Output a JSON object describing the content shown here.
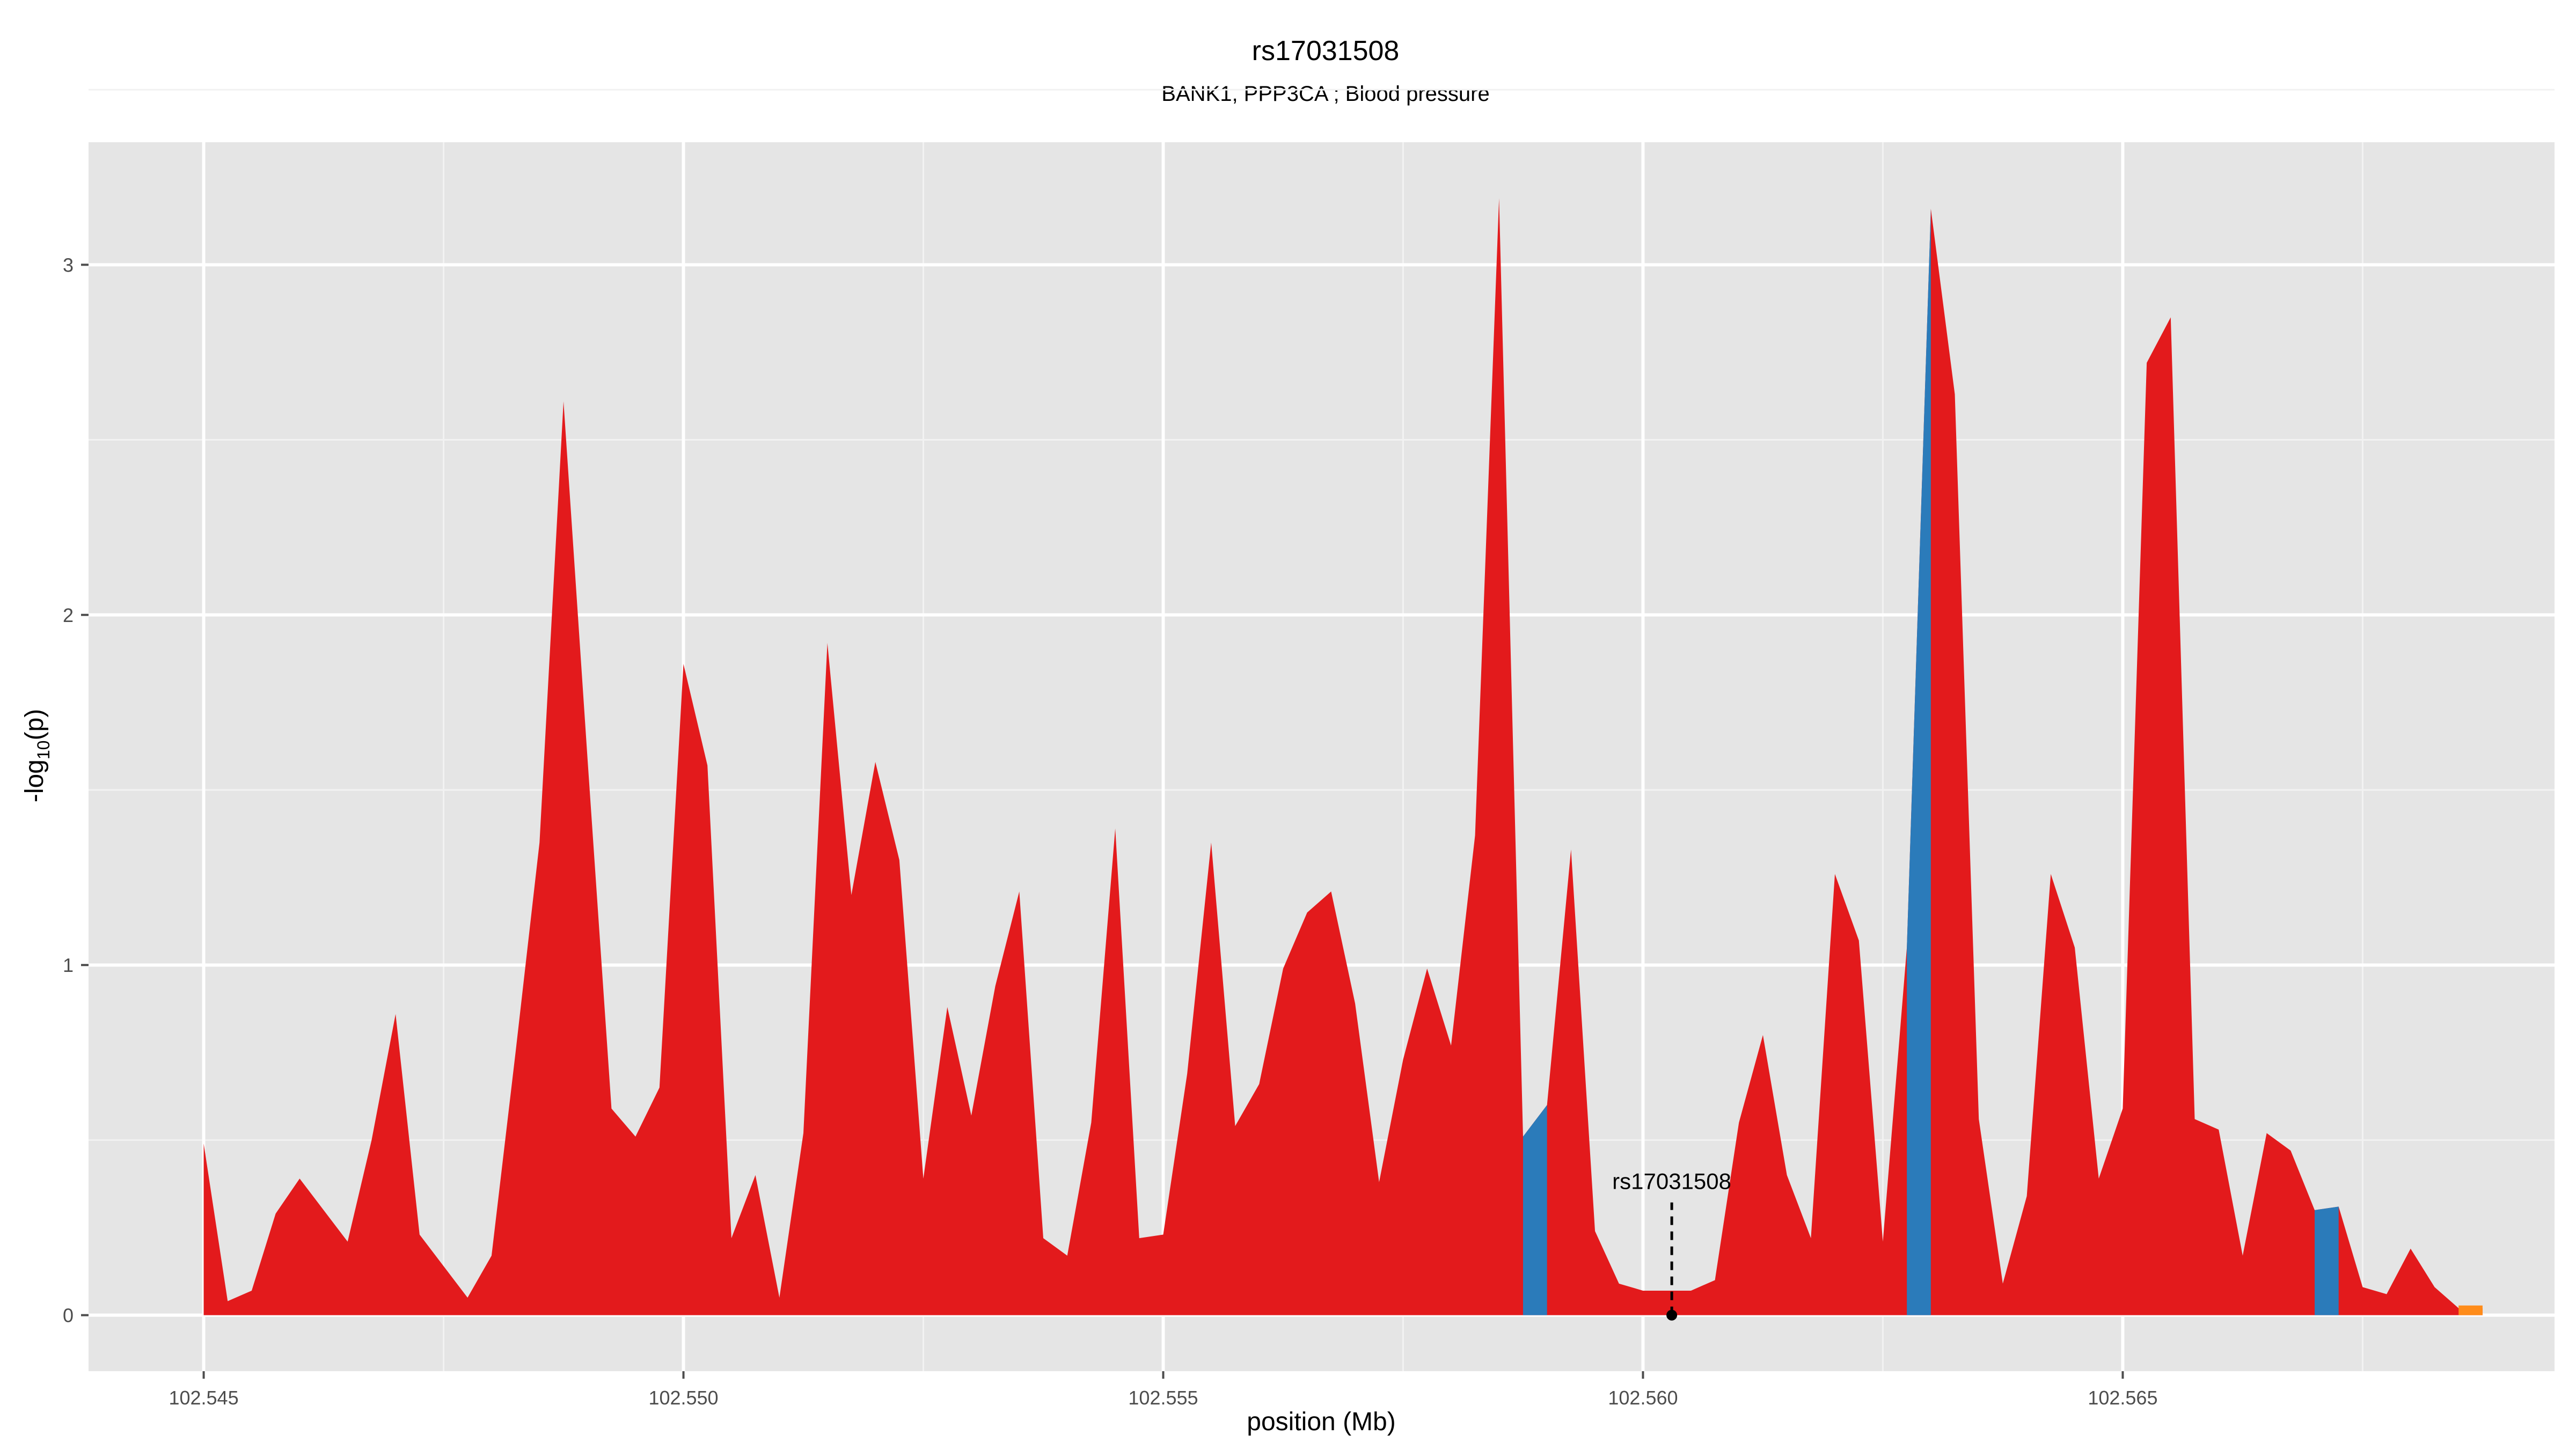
{
  "chart_data": {
    "type": "area",
    "title": "rs17031508",
    "subtitle": "BANK1, PPP3CA ; Blood pressure",
    "xlabel": "position (Mb)",
    "ylabel": "-log10(p)",
    "xlim": [
      102.5438,
      102.5695
    ],
    "ylim": [
      -0.16,
      3.35
    ],
    "x_ticks": [
      102.545,
      102.55,
      102.555,
      102.56,
      102.565
    ],
    "x_tick_labels": [
      "102.545",
      "102.550",
      "102.555",
      "102.560",
      "102.565"
    ],
    "y_ticks": [
      0,
      1,
      2,
      3
    ],
    "y_tick_labels": [
      "0",
      "1",
      "2",
      "3"
    ],
    "grid": true,
    "panel_background": "#e5e5e5",
    "colors": {
      "red": "#e31a1c",
      "blue": "#2b7bba",
      "orange": "#ff8c1a"
    },
    "points": [
      [
        102.545,
        0.49
      ],
      [
        102.54525,
        0.04
      ],
      [
        102.5455,
        0.07
      ],
      [
        102.54575,
        0.29
      ],
      [
        102.546,
        0.39
      ],
      [
        102.54625,
        0.3
      ],
      [
        102.5465,
        0.21
      ],
      [
        102.54675,
        0.5
      ],
      [
        102.547,
        0.86
      ],
      [
        102.54725,
        0.23
      ],
      [
        102.5475,
        0.14
      ],
      [
        102.54775,
        0.05
      ],
      [
        102.548,
        0.17
      ],
      [
        102.54825,
        0.75
      ],
      [
        102.5485,
        1.35
      ],
      [
        102.54875,
        2.61
      ],
      [
        102.549,
        1.59
      ],
      [
        102.54925,
        0.59
      ],
      [
        102.5495,
        0.51
      ],
      [
        102.54975,
        0.65
      ],
      [
        102.55,
        1.86
      ],
      [
        102.55025,
        1.57
      ],
      [
        102.5505,
        0.22
      ],
      [
        102.55075,
        0.4
      ],
      [
        102.551,
        0.05
      ],
      [
        102.55125,
        0.52
      ],
      [
        102.5515,
        1.92
      ],
      [
        102.55175,
        1.2
      ],
      [
        102.552,
        1.58
      ],
      [
        102.55225,
        1.3
      ],
      [
        102.5525,
        0.39
      ],
      [
        102.55275,
        0.88
      ],
      [
        102.553,
        0.57
      ],
      [
        102.55325,
        0.94
      ],
      [
        102.5535,
        1.21
      ],
      [
        102.55375,
        0.22
      ],
      [
        102.554,
        0.17
      ],
      [
        102.55425,
        0.55
      ],
      [
        102.5545,
        1.39
      ],
      [
        102.55475,
        0.22
      ],
      [
        102.555,
        0.23
      ],
      [
        102.55525,
        0.69
      ],
      [
        102.5555,
        1.35
      ],
      [
        102.55575,
        0.54
      ],
      [
        102.556,
        0.66
      ],
      [
        102.55625,
        0.99
      ],
      [
        102.5565,
        1.15
      ],
      [
        102.55675,
        1.21
      ],
      [
        102.557,
        0.89
      ],
      [
        102.55725,
        0.38
      ],
      [
        102.5575,
        0.73
      ],
      [
        102.55775,
        0.99
      ],
      [
        102.558,
        0.77
      ],
      [
        102.55825,
        1.37
      ],
      [
        102.5585,
        3.19
      ],
      [
        102.55875,
        0.51
      ],
      [
        102.559,
        0.6
      ],
      [
        102.55925,
        1.33
      ],
      [
        102.5595,
        0.24
      ],
      [
        102.55975,
        0.09
      ],
      [
        102.56,
        0.07
      ],
      [
        102.56025,
        0.07
      ],
      [
        102.5605,
        0.07
      ],
      [
        102.56075,
        0.1
      ],
      [
        102.561,
        0.55
      ],
      [
        102.56125,
        0.8
      ],
      [
        102.5615,
        0.4
      ],
      [
        102.56175,
        0.22
      ],
      [
        102.562,
        1.26
      ],
      [
        102.56225,
        1.07
      ],
      [
        102.5625,
        0.21
      ],
      [
        102.56275,
        1.05
      ],
      [
        102.563,
        3.16
      ],
      [
        102.56325,
        2.63
      ],
      [
        102.5635,
        0.56
      ],
      [
        102.56375,
        0.09
      ],
      [
        102.564,
        0.34
      ],
      [
        102.56425,
        1.26
      ],
      [
        102.5645,
        1.05
      ],
      [
        102.56475,
        0.39
      ],
      [
        102.565,
        0.59
      ],
      [
        102.56525,
        2.72
      ],
      [
        102.5655,
        2.85
      ],
      [
        102.56575,
        0.56
      ],
      [
        102.566,
        0.53
      ],
      [
        102.56625,
        0.17
      ],
      [
        102.5665,
        0.52
      ],
      [
        102.56675,
        0.47
      ],
      [
        102.567,
        0.3
      ],
      [
        102.56725,
        0.31
      ],
      [
        102.5675,
        0.08
      ],
      [
        102.56775,
        0.06
      ],
      [
        102.568,
        0.19
      ],
      [
        102.56825,
        0.08
      ],
      [
        102.5685,
        0.02
      ],
      [
        102.56875,
        0.02
      ]
    ],
    "blue_segments": [
      [
        55,
        56
      ],
      [
        71,
        72
      ],
      [
        88,
        89
      ]
    ],
    "orange_segments": [
      [
        94,
        95
      ]
    ],
    "annotation": {
      "label": "rs17031508",
      "x": 102.5603,
      "y": 0.0
    }
  }
}
